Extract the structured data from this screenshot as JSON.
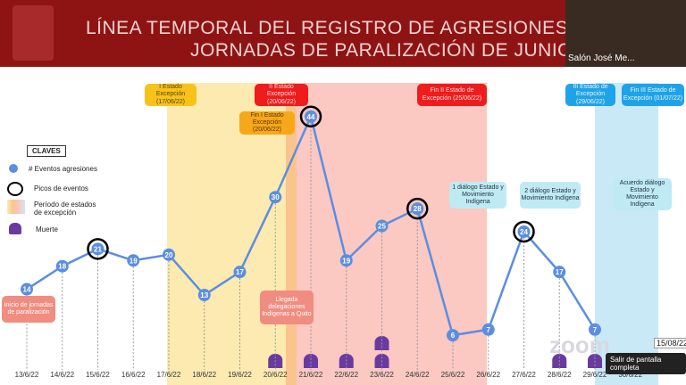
{
  "header": {
    "title_line1": "LÍNEA TEMPORAL DEL REGISTRO DE AGRESIONES DURA",
    "title_line2": "JORNADAS DE PARALIZACIÓN DE JUNIO DE",
    "participant": "Salón José Me..."
  },
  "chart_data": {
    "type": "line",
    "categories": [
      "13/6/22",
      "14/6/22",
      "15/6/22",
      "16/6/22",
      "17/6/22",
      "18/6/22",
      "19/6/22",
      "20/6/22",
      "21/6/22",
      "22/6/22",
      "23/6/22",
      "24/6/22",
      "25/6/22",
      "26/6/22",
      "27/6/22",
      "28/6/22",
      "29/6/22",
      "30/6/22"
    ],
    "series": [
      {
        "name": "# Eventos agresiones",
        "color": "#5b8ee0",
        "values": [
          14,
          18,
          21,
          19,
          20,
          13,
          17,
          30,
          44,
          19,
          25,
          28,
          6,
          7,
          24,
          17,
          7,
          null
        ]
      }
    ],
    "ylim": [
      0,
      50
    ],
    "legend_title": "CLAVES",
    "legend_items": [
      "Picos de eventos",
      "Período de estados de excepción",
      "Muerte"
    ],
    "annotations": [
      "I Estado Excepción (17/06/22)",
      "II Estado Excepción (20/06/22)",
      "Fin I Estado Excepción (20/06/22)",
      "Fin II Estado de Excepción (25/06/22)",
      "III Estado de Excepción (29/06/22)",
      "Fin III Estado de Excepción (01/07/22)",
      "1 diálogo Estado y Movimiento Indígena",
      "2 diálogo Estado y Movimiento Indígena",
      "Acuerdo diálogo Estado y Movimiento Indígena",
      "Inicio de jornadas de paralización",
      "Llegada delegaciones Indígenas a Quito"
    ]
  },
  "overlay": {
    "date_badge": "15/08/22",
    "exit_fullscreen": "Salir de pantalla completa"
  }
}
